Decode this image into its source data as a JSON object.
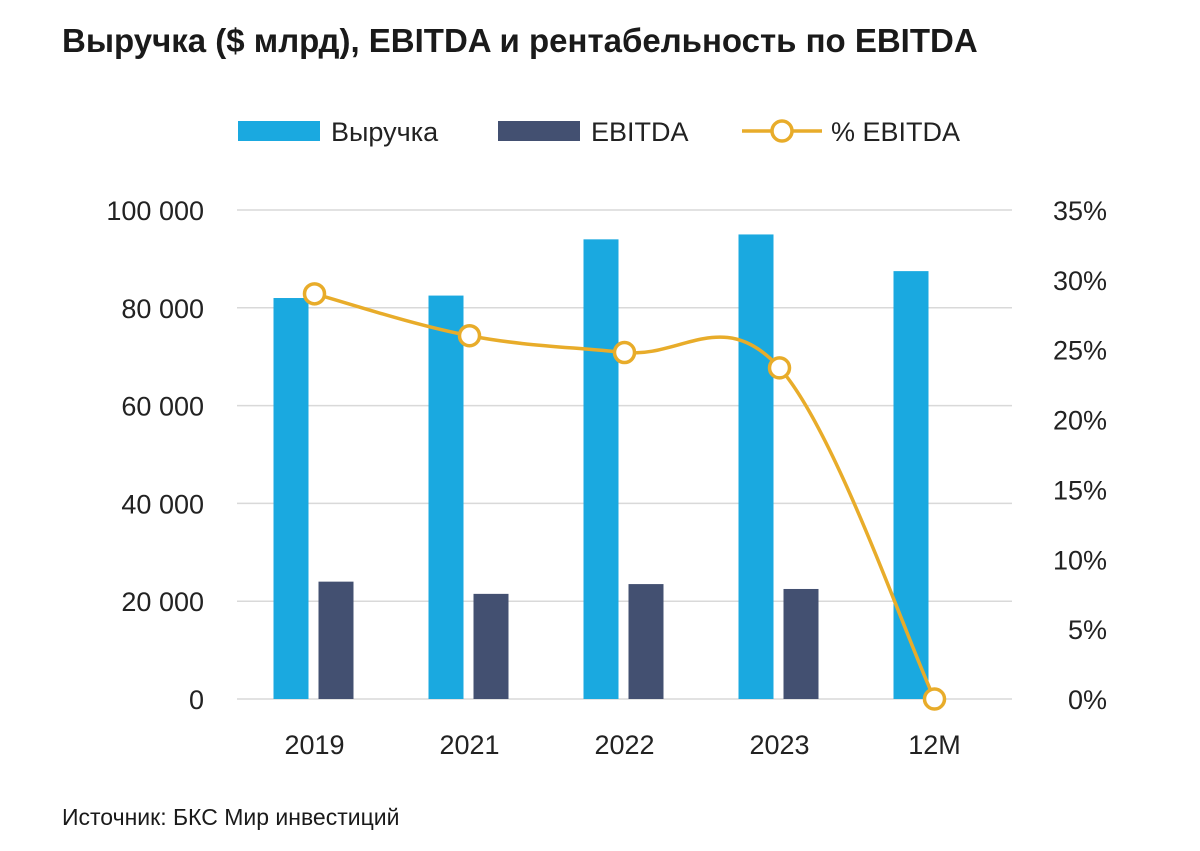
{
  "title": "Выручка ($ млрд), EBITDA и рентабельность по EBITDA",
  "source": "Источник: БКС Мир инвестиций",
  "colors": {
    "revenue": "#1aa9e0",
    "ebitda": "#435071",
    "margin": "#e8ac2a",
    "grid": "#d9d9d9"
  },
  "chart_data": {
    "type": "bar",
    "categories": [
      "2019",
      "2021",
      "2022",
      "2023",
      "12M"
    ],
    "series": [
      {
        "name": "Выручка",
        "kind": "bar",
        "axis": "left",
        "values": [
          82000,
          82500,
          94000,
          95000,
          87500
        ]
      },
      {
        "name": "EBITDA",
        "kind": "bar",
        "axis": "left",
        "values": [
          24000,
          21500,
          23500,
          22500,
          0
        ]
      },
      {
        "name": "% EBITDA",
        "kind": "line",
        "axis": "right",
        "values": [
          29.0,
          26.0,
          24.8,
          23.7,
          0
        ]
      }
    ],
    "left_axis": {
      "ylim": [
        0,
        100000
      ],
      "ticks": [
        "0",
        "20 000",
        "40 000",
        "60 000",
        "80 000",
        "100 000"
      ]
    },
    "right_axis": {
      "ylim": [
        0,
        35
      ],
      "ticks": [
        "0%",
        "5%",
        "10%",
        "15%",
        "20%",
        "25%",
        "30%",
        "35%"
      ]
    },
    "legend": {
      "placement": "top",
      "items": [
        "Выручка",
        "EBITDA",
        "% EBITDA"
      ]
    },
    "grid": true
  }
}
